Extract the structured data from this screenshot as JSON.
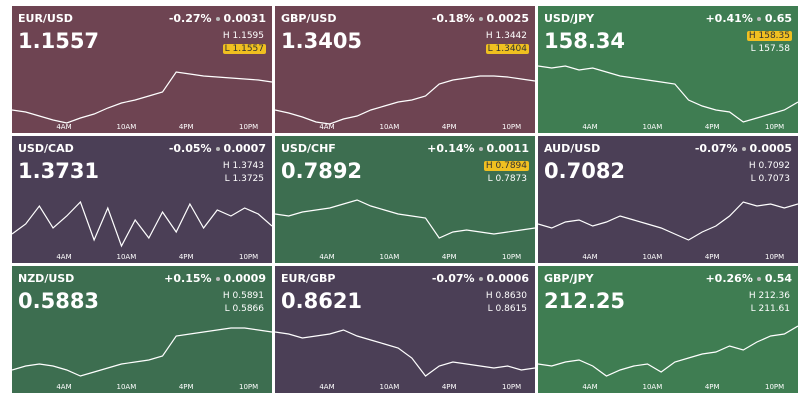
{
  "high_label": "H",
  "low_label": "L",
  "time_labels": [
    "4AM",
    "10AM",
    "4PM",
    "10PM"
  ],
  "tiles": [
    {
      "pair": "EUR/USD",
      "price": "1.1557",
      "change_pct": "-0.27%",
      "change": "0.0031",
      "high": "1.1595",
      "low": "1.1557",
      "highlight": "low",
      "color": "#6e4452"
    },
    {
      "pair": "GBP/USD",
      "price": "1.3405",
      "change_pct": "-0.18%",
      "change": "0.0025",
      "high": "1.3442",
      "low": "1.3404",
      "highlight": "low",
      "color": "#6e4452"
    },
    {
      "pair": "USD/JPY",
      "price": "158.34",
      "change_pct": "+0.41%",
      "change": "0.65",
      "high": "158.35",
      "low": "157.58",
      "highlight": "high",
      "color": "#3f7d52"
    },
    {
      "pair": "USD/CAD",
      "price": "1.3731",
      "change_pct": "-0.05%",
      "change": "0.0007",
      "high": "1.3743",
      "low": "1.3725",
      "highlight": null,
      "color": "#4b3f56"
    },
    {
      "pair": "USD/CHF",
      "price": "0.7892",
      "change_pct": "+0.14%",
      "change": "0.0011",
      "high": "0.7894",
      "low": "0.7873",
      "highlight": "high",
      "color": "#3d6e50"
    },
    {
      "pair": "AUD/USD",
      "price": "0.7082",
      "change_pct": "-0.07%",
      "change": "0.0005",
      "high": "0.7092",
      "low": "0.7073",
      "highlight": null,
      "color": "#4b3f56"
    },
    {
      "pair": "NZD/USD",
      "price": "0.5883",
      "change_pct": "+0.15%",
      "change": "0.0009",
      "high": "0.5891",
      "low": "0.5866",
      "highlight": null,
      "color": "#3d6e50"
    },
    {
      "pair": "EUR/GBP",
      "price": "0.8621",
      "change_pct": "-0.07%",
      "change": "0.0006",
      "high": "0.8630",
      "low": "0.8615",
      "highlight": null,
      "color": "#4b3f56"
    },
    {
      "pair": "GBP/JPY",
      "price": "212.25",
      "change_pct": "+0.26%",
      "change": "0.54",
      "high": "212.36",
      "low": "211.61",
      "highlight": null,
      "color": "#3f7d52"
    }
  ]
}
